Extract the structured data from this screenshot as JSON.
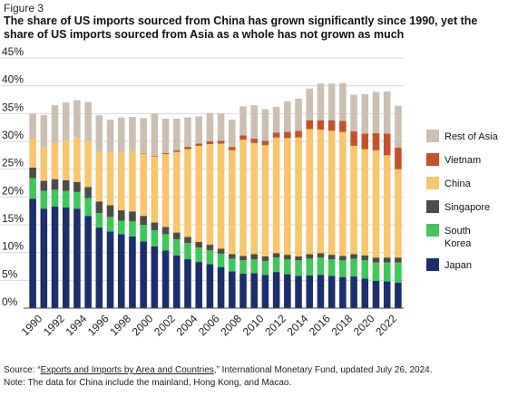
{
  "figure_label": "Figure 3",
  "title": "The share of US imports sourced from China has grown significantly since 1990, yet the share of US imports sourced from Asia as a whole has not grown as much",
  "source": {
    "prefix": "Source: “",
    "link": "Exports and Imports by Area and Countries",
    "suffix": ",” International Monetary Fund, updated July 26, 2024."
  },
  "note": "Note: The data for China include the mainland, Hong Kong, and Macao.",
  "chart_data": {
    "type": "bar",
    "stacked": true,
    "categories": [
      "1990",
      "1991",
      "1992",
      "1993",
      "1994",
      "1995",
      "1996",
      "1997",
      "1998",
      "1999",
      "2000",
      "2001",
      "2002",
      "2003",
      "2004",
      "2005",
      "2006",
      "2007",
      "2008",
      "2009",
      "2010",
      "2011",
      "2012",
      "2013",
      "2014",
      "2015",
      "2016",
      "2017",
      "2018",
      "2019",
      "2020",
      "2021",
      "2022",
      "2023"
    ],
    "x_tick_labels": [
      "1990",
      "1992",
      "1994",
      "1996",
      "1998",
      "2000",
      "2002",
      "2004",
      "2006",
      "2008",
      "2010",
      "2012",
      "2014",
      "2016",
      "2018",
      "2020",
      "2022"
    ],
    "y_tick_labels": [
      "0%",
      "5%",
      "10%",
      "15%",
      "20%",
      "25%",
      "30%",
      "35%",
      "40%",
      "45%"
    ],
    "ylim": [
      0,
      45
    ],
    "y_unit": "%",
    "grid": true,
    "legend_position": "right",
    "series": [
      {
        "name": "Japan",
        "color": "#1c2e6e",
        "values": [
          19.7,
          17.9,
          18.3,
          18.1,
          17.9,
          16.6,
          14.5,
          13.8,
          13.3,
          12.9,
          12.0,
          11.1,
          10.4,
          9.5,
          8.8,
          8.3,
          7.9,
          7.4,
          6.6,
          6.2,
          6.3,
          6.0,
          6.5,
          6.1,
          5.8,
          5.9,
          6.0,
          5.8,
          5.6,
          5.7,
          5.3,
          4.9,
          4.8,
          4.6
        ]
      },
      {
        "name": "South Korea",
        "color": "#3fc75a",
        "values": [
          3.7,
          3.2,
          3.0,
          3.0,
          3.0,
          3.2,
          2.6,
          2.6,
          2.4,
          2.7,
          3.0,
          2.9,
          2.9,
          2.9,
          2.9,
          2.6,
          2.5,
          2.4,
          2.3,
          2.4,
          2.5,
          2.5,
          2.6,
          2.7,
          2.8,
          3.0,
          3.1,
          3.0,
          3.0,
          3.2,
          3.3,
          3.3,
          3.4,
          3.6
        ]
      },
      {
        "name": "Singapore",
        "color": "#4f4b46",
        "values": [
          1.9,
          1.8,
          1.9,
          1.9,
          1.8,
          2.0,
          2.1,
          2.1,
          1.9,
          1.8,
          1.6,
          1.4,
          1.3,
          1.2,
          1.1,
          1.0,
          1.0,
          0.9,
          0.8,
          0.8,
          0.9,
          0.8,
          0.8,
          0.8,
          0.7,
          0.8,
          0.8,
          0.8,
          0.8,
          0.8,
          0.9,
          0.9,
          0.9,
          0.9
        ]
      },
      {
        "name": "China",
        "color": "#f8c56c",
        "values": [
          5.2,
          6.0,
          6.5,
          7.2,
          8.0,
          8.3,
          9.0,
          9.7,
          10.4,
          10.8,
          11.2,
          11.9,
          13.1,
          14.5,
          15.8,
          17.3,
          18.1,
          18.9,
          18.7,
          20.9,
          20.0,
          20.0,
          20.8,
          21.0,
          21.4,
          22.5,
          22.2,
          22.3,
          22.3,
          19.5,
          19.1,
          19.3,
          18.4,
          15.9
        ]
      },
      {
        "name": "Vietnam",
        "color": "#c4512a",
        "values": [
          0,
          0,
          0,
          0,
          0,
          0,
          0,
          0,
          0,
          0,
          0.1,
          0.1,
          0.2,
          0.3,
          0.4,
          0.4,
          0.5,
          0.5,
          0.6,
          0.8,
          0.8,
          0.8,
          0.9,
          1.1,
          1.2,
          1.6,
          1.7,
          1.9,
          2.0,
          2.6,
          2.8,
          3.1,
          3.9,
          3.9
        ]
      },
      {
        "name": "Rest of Asia",
        "color": "#cbbfb2",
        "values": [
          4.5,
          5.8,
          6.8,
          6.8,
          6.7,
          7.0,
          6.5,
          5.7,
          6.3,
          6.2,
          6.3,
          7.6,
          6.2,
          5.7,
          5.3,
          4.9,
          5.1,
          4.9,
          4.9,
          5.2,
          6.0,
          5.7,
          4.6,
          5.5,
          5.8,
          5.7,
          6.6,
          6.6,
          6.8,
          6.6,
          7.1,
          7.4,
          7.6,
          7.5
        ]
      }
    ]
  }
}
